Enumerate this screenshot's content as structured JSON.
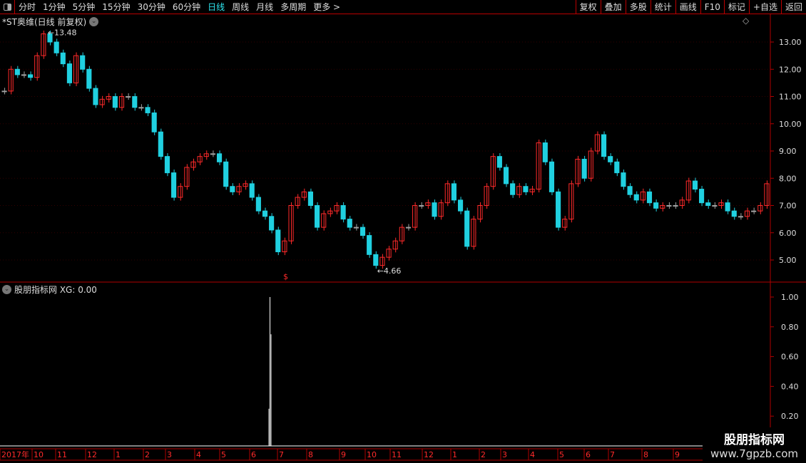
{
  "toolbar": {
    "periods": [
      "分时",
      "1分钟",
      "5分钟",
      "15分钟",
      "30分钟",
      "60分钟",
      "日线",
      "周线",
      "月线",
      "多周期",
      "更多 >"
    ],
    "active": "日线",
    "right_buttons": [
      "复权",
      "叠加",
      "多股",
      "统计",
      "画线",
      "F10",
      "标记",
      "+自选",
      "返回"
    ]
  },
  "main_title": "*ST奥维(日线 前复权)",
  "indicator_title": "股朋指标网 XG: 0.00",
  "watermark": {
    "line1": "股朋指标网",
    "line2": "www.7gpzb.com"
  },
  "colors": {
    "up": "#ff2a2a",
    "down": "#20d0e0",
    "flat": "#a0a0a0",
    "axis": "#b00000",
    "accent": "#2ee6f0"
  },
  "chart_data": [
    {
      "type": "candlestick",
      "title": "*ST奥维(日线 前复权)",
      "ylim": [
        4.4,
        13.9
      ],
      "yticks": [
        "13.00",
        "12.00",
        "11.00",
        "10.00",
        "9.00",
        "8.00",
        "7.00",
        "6.00",
        "5.00"
      ],
      "annotations": {
        "max": "13.48",
        "min": "4.66"
      },
      "close": [
        11.2,
        12.0,
        11.8,
        11.8,
        11.7,
        12.5,
        13.3,
        13.0,
        12.6,
        12.2,
        11.5,
        12.5,
        12.0,
        11.3,
        10.7,
        10.9,
        11.0,
        10.6,
        11.0,
        11.0,
        10.6,
        10.6,
        10.4,
        9.7,
        8.8,
        8.2,
        7.3,
        7.7,
        8.4,
        8.6,
        8.8,
        8.9,
        8.9,
        8.6,
        7.7,
        7.5,
        7.7,
        7.8,
        7.3,
        6.8,
        6.6,
        6.1,
        5.3,
        5.7,
        7.0,
        7.3,
        7.5,
        7.0,
        6.2,
        6.7,
        6.8,
        7.0,
        6.5,
        6.2,
        6.2,
        5.9,
        5.2,
        4.8,
        5.1,
        5.4,
        5.7,
        6.2,
        6.2,
        7.0,
        7.0,
        7.1,
        6.6,
        7.1,
        7.8,
        7.2,
        6.8,
        5.5,
        6.5,
        7.0,
        7.7,
        8.8,
        8.4,
        7.8,
        7.4,
        7.7,
        7.5,
        7.6,
        9.3,
        8.6,
        7.5,
        6.2,
        6.5,
        7.8,
        8.7,
        8.0,
        9.0,
        9.6,
        8.8,
        8.6,
        8.2,
        7.7,
        7.4,
        7.2,
        7.5,
        7.1,
        6.9,
        7.0,
        7.0,
        7.0,
        7.2,
        7.9,
        7.6,
        7.1,
        7.0,
        7.0,
        7.1,
        6.8,
        6.6,
        6.6,
        6.8,
        6.8,
        7.0,
        7.8
      ],
      "xticks": [
        "2017年",
        "10",
        "11",
        "12",
        "1",
        "2",
        "3",
        "4",
        "5",
        "6",
        "7",
        "8",
        "9",
        "10",
        "11",
        "12",
        "1",
        "2",
        "3",
        "4",
        "5",
        "6",
        "7",
        "8",
        "9"
      ]
    },
    {
      "type": "bar",
      "series": [
        {
          "name": "XG",
          "values_nonzero": [
            0.25,
            1.0,
            0.75
          ]
        }
      ],
      "ylim": [
        0,
        1.05
      ],
      "yticks": [
        "1.00",
        "0.80",
        "0.60",
        "0.40",
        "0.20"
      ],
      "current": "0.00"
    }
  ]
}
